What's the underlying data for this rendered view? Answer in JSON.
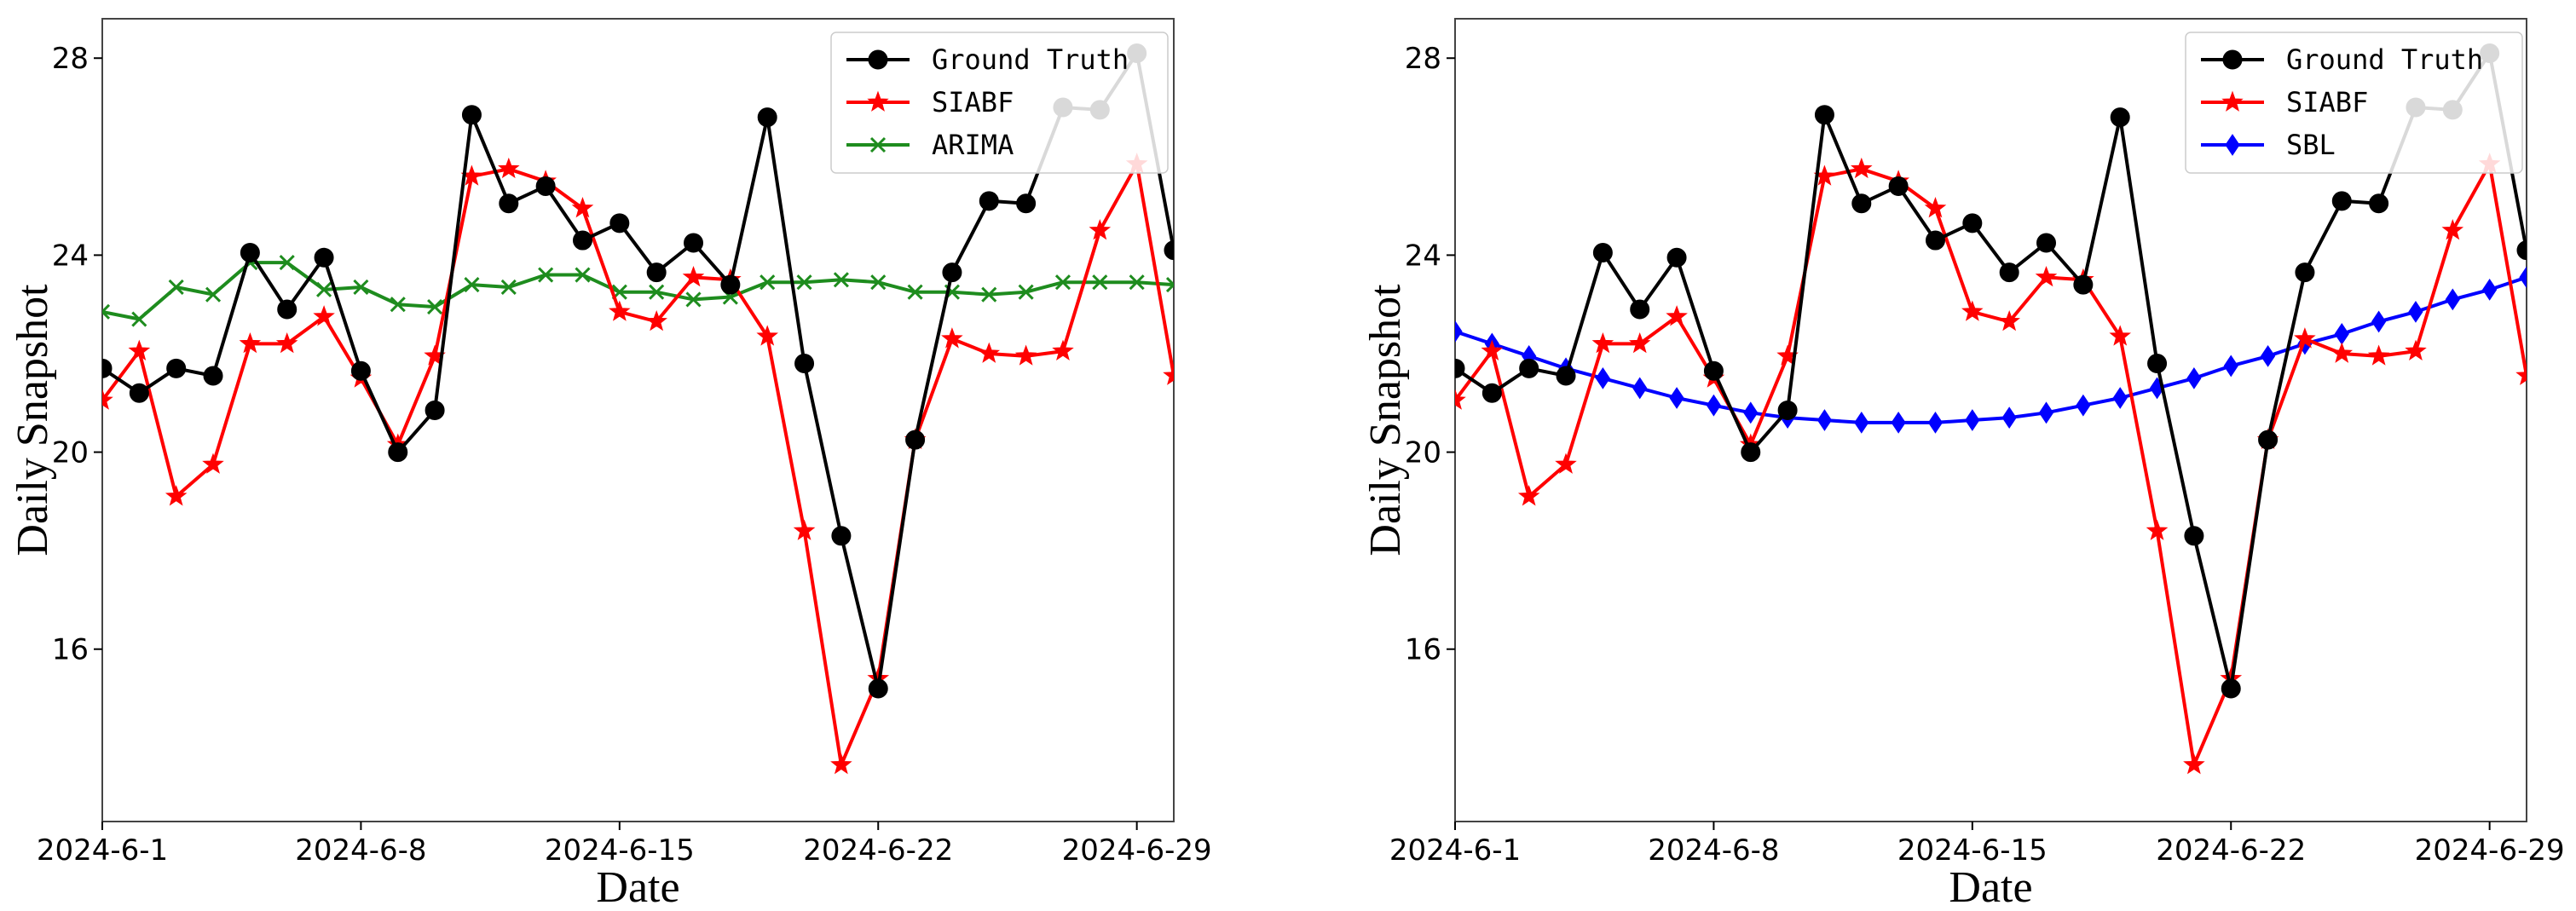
{
  "colors": {
    "ground_truth": "#000000",
    "siabf": "#ff0000",
    "arima": "#1e8c1e",
    "sbl": "#0000ff"
  },
  "chart_data": [
    {
      "type": "line",
      "xlabel": "Date",
      "ylabel": "Daily Snapshot",
      "x": [
        "2024-6-1",
        "2024-6-2",
        "2024-6-3",
        "2024-6-4",
        "2024-6-5",
        "2024-6-6",
        "2024-6-7",
        "2024-6-8",
        "2024-6-9",
        "2024-6-10",
        "2024-6-11",
        "2024-6-12",
        "2024-6-13",
        "2024-6-14",
        "2024-6-15",
        "2024-6-16",
        "2024-6-17",
        "2024-6-18",
        "2024-6-19",
        "2024-6-20",
        "2024-6-21",
        "2024-6-22",
        "2024-6-23",
        "2024-6-24",
        "2024-6-25",
        "2024-6-26",
        "2024-6-27",
        "2024-6-28",
        "2024-6-29",
        "2024-6-30"
      ],
      "xticks": [
        "2024-6-1",
        "2024-6-8",
        "2024-6-15",
        "2024-6-22",
        "2024-6-29"
      ],
      "yticks": [
        16,
        20,
        24,
        28
      ],
      "ylim": [
        12.5,
        28.8
      ],
      "grid": false,
      "legend_position": "top-right",
      "series": [
        {
          "name": "Ground Truth",
          "color": "#000000",
          "marker": "circle",
          "values": [
            21.7,
            21.2,
            21.7,
            21.55,
            24.05,
            22.9,
            23.95,
            21.65,
            20.0,
            20.85,
            26.85,
            25.05,
            25.4,
            24.3,
            24.65,
            23.65,
            24.25,
            23.4,
            26.8,
            21.8,
            18.3,
            15.2,
            20.25,
            23.65,
            25.1,
            25.05,
            27.0,
            26.95,
            28.1,
            24.1
          ]
        },
        {
          "name": "SIABF",
          "color": "#ff0000",
          "marker": "star",
          "values": [
            21.05,
            22.05,
            19.1,
            19.75,
            22.2,
            22.2,
            22.75,
            21.5,
            20.15,
            21.95,
            25.6,
            25.75,
            25.5,
            24.95,
            22.85,
            22.65,
            23.55,
            23.5,
            22.35,
            18.4,
            13.65,
            15.4,
            20.25,
            22.3,
            22.0,
            21.95,
            22.05,
            24.5,
            25.85,
            21.55
          ]
        },
        {
          "name": "ARIMA",
          "color": "#1e8c1e",
          "marker": "x",
          "values": [
            22.85,
            22.7,
            23.35,
            23.2,
            23.85,
            23.85,
            23.3,
            23.35,
            23.0,
            22.95,
            23.4,
            23.35,
            23.6,
            23.6,
            23.25,
            23.25,
            23.1,
            23.15,
            23.45,
            23.45,
            23.5,
            23.45,
            23.25,
            23.25,
            23.2,
            23.25,
            23.45,
            23.45,
            23.45,
            23.4
          ]
        }
      ]
    },
    {
      "type": "line",
      "xlabel": "Date",
      "ylabel": "Daily Snapshot",
      "x": [
        "2024-6-1",
        "2024-6-2",
        "2024-6-3",
        "2024-6-4",
        "2024-6-5",
        "2024-6-6",
        "2024-6-7",
        "2024-6-8",
        "2024-6-9",
        "2024-6-10",
        "2024-6-11",
        "2024-6-12",
        "2024-6-13",
        "2024-6-14",
        "2024-6-15",
        "2024-6-16",
        "2024-6-17",
        "2024-6-18",
        "2024-6-19",
        "2024-6-20",
        "2024-6-21",
        "2024-6-22",
        "2024-6-23",
        "2024-6-24",
        "2024-6-25",
        "2024-6-26",
        "2024-6-27",
        "2024-6-28",
        "2024-6-29",
        "2024-6-30"
      ],
      "xticks": [
        "2024-6-1",
        "2024-6-8",
        "2024-6-15",
        "2024-6-22",
        "2024-6-29"
      ],
      "yticks": [
        16,
        20,
        24,
        28
      ],
      "ylim": [
        12.5,
        28.8
      ],
      "grid": false,
      "legend_position": "top-right",
      "series": [
        {
          "name": "Ground Truth",
          "color": "#000000",
          "marker": "circle",
          "values": [
            21.7,
            21.2,
            21.7,
            21.55,
            24.05,
            22.9,
            23.95,
            21.65,
            20.0,
            20.85,
            26.85,
            25.05,
            25.4,
            24.3,
            24.65,
            23.65,
            24.25,
            23.4,
            26.8,
            21.8,
            18.3,
            15.2,
            20.25,
            23.65,
            25.1,
            25.05,
            27.0,
            26.95,
            28.1,
            24.1
          ]
        },
        {
          "name": "SIABF",
          "color": "#ff0000",
          "marker": "star",
          "values": [
            21.05,
            22.05,
            19.1,
            19.75,
            22.2,
            22.2,
            22.75,
            21.5,
            20.15,
            21.95,
            25.6,
            25.75,
            25.5,
            24.95,
            22.85,
            22.65,
            23.55,
            23.5,
            22.35,
            18.4,
            13.65,
            15.4,
            20.25,
            22.3,
            22.0,
            21.95,
            22.05,
            24.5,
            25.85,
            21.55
          ]
        },
        {
          "name": "SBL",
          "color": "#0000ff",
          "marker": "diamond",
          "values": [
            22.45,
            22.2,
            21.95,
            21.7,
            21.5,
            21.3,
            21.1,
            20.95,
            20.8,
            20.7,
            20.65,
            20.6,
            20.6,
            20.6,
            20.65,
            20.7,
            20.8,
            20.95,
            21.1,
            21.3,
            21.5,
            21.75,
            21.95,
            22.2,
            22.4,
            22.65,
            22.85,
            23.1,
            23.3,
            23.55
          ]
        }
      ]
    }
  ]
}
